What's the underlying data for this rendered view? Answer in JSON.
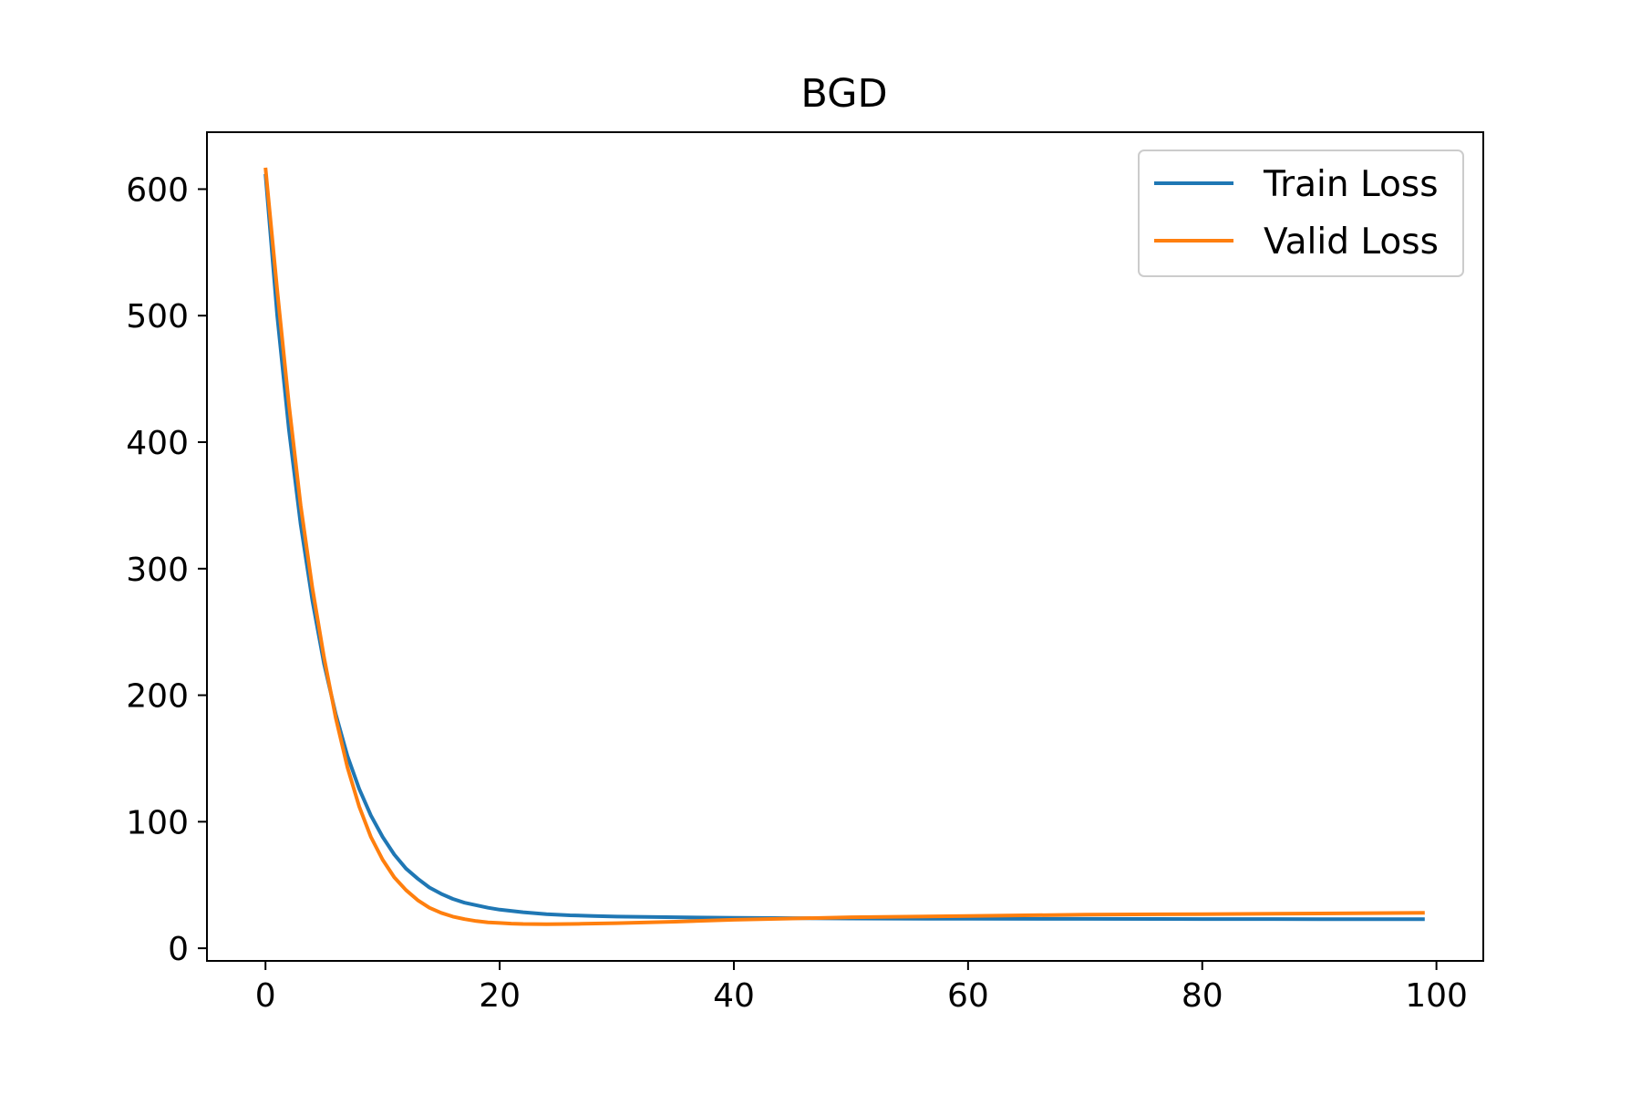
{
  "chart_data": {
    "type": "line",
    "title": "BGD",
    "xlabel": "",
    "ylabel": "",
    "xlim": [
      -5,
      104
    ],
    "ylim": [
      -10,
      645
    ],
    "x_ticks": [
      0,
      20,
      40,
      60,
      80,
      100
    ],
    "y_ticks": [
      0,
      100,
      200,
      300,
      400,
      500,
      600
    ],
    "grid": false,
    "legend_position": "top-right",
    "series": [
      {
        "name": "Train Loss",
        "color": "#1f77b4",
        "x": [
          0,
          1,
          2,
          3,
          4,
          5,
          6,
          7,
          8,
          9,
          10,
          11,
          12,
          13,
          14,
          15,
          16,
          17,
          18,
          19,
          20,
          22,
          24,
          26,
          28,
          30,
          35,
          40,
          45,
          50,
          60,
          70,
          80,
          90,
          99
        ],
        "y": [
          612,
          500,
          410,
          335,
          275,
          225,
          185,
          152,
          126,
          105,
          88,
          74,
          63,
          55,
          48,
          43,
          39,
          36,
          34,
          32,
          30.5,
          28.5,
          27,
          26,
          25.5,
          25,
          24.5,
          24,
          23.8,
          23.5,
          23.3,
          23.2,
          23.1,
          23,
          23
        ]
      },
      {
        "name": "Valid Loss",
        "color": "#ff7f0e",
        "x": [
          0,
          1,
          2,
          3,
          4,
          5,
          6,
          7,
          8,
          9,
          10,
          11,
          12,
          13,
          14,
          15,
          16,
          17,
          18,
          19,
          20,
          21,
          22,
          23,
          24,
          25,
          27,
          30,
          35,
          40,
          45,
          50,
          60,
          70,
          80,
          90,
          99
        ],
        "y": [
          617,
          520,
          430,
          350,
          285,
          230,
          182,
          143,
          112,
          88,
          70,
          56,
          46,
          38,
          32,
          28,
          25,
          23,
          21.5,
          20.5,
          20,
          19.5,
          19.2,
          19.1,
          19,
          19.1,
          19.3,
          19.8,
          21,
          22.5,
          23.5,
          24.5,
          25.5,
          26.5,
          27,
          27.5,
          28
        ]
      }
    ]
  }
}
